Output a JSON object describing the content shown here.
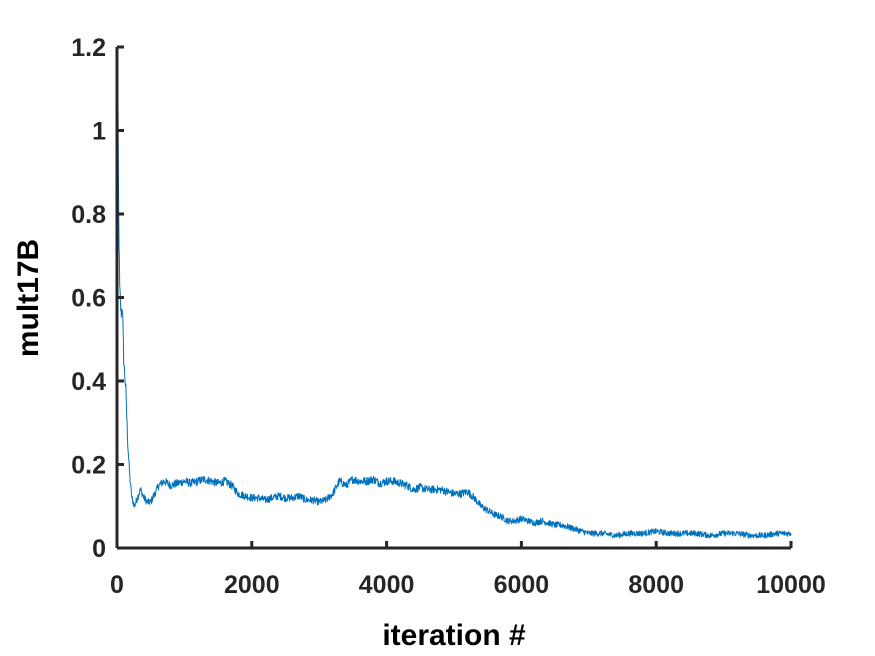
{
  "chart_data": {
    "type": "line",
    "title": "",
    "xlabel": "iteration #",
    "ylabel": "mult17B",
    "xlim": [
      0,
      10000
    ],
    "ylim": [
      0,
      1.2
    ],
    "xticks": [
      0,
      2000,
      4000,
      6000,
      8000,
      10000
    ],
    "xtick_labels": [
      "0",
      "2000",
      "4000",
      "6000",
      "8000",
      "10000"
    ],
    "yticks": [
      0,
      0.2,
      0.4,
      0.6,
      0.8,
      1.0,
      1.2
    ],
    "ytick_labels": [
      "0",
      "0.2",
      "0.4",
      "0.6",
      "0.8",
      "1",
      "1.2"
    ],
    "grid": false,
    "legend": "none",
    "series": [
      {
        "color": "#0072BD",
        "noise": 0.018,
        "x": [
          0,
          10,
          25,
          40,
          60,
          80,
          100,
          130,
          160,
          190,
          220,
          260,
          300,
          350,
          400,
          450,
          500,
          560,
          620,
          700,
          800,
          900,
          1000,
          1100,
          1200,
          1300,
          1400,
          1500,
          1600,
          1700,
          1800,
          1900,
          2000,
          2100,
          2200,
          2300,
          2400,
          2500,
          2600,
          2700,
          2800,
          2900,
          3000,
          3100,
          3200,
          3300,
          3400,
          3500,
          3600,
          3700,
          3800,
          3900,
          4000,
          4100,
          4200,
          4300,
          4400,
          4500,
          4600,
          4700,
          4800,
          4900,
          5000,
          5100,
          5200,
          5300,
          5400,
          5500,
          5600,
          5700,
          5800,
          5900,
          6000,
          6100,
          6200,
          6300,
          6400,
          6500,
          6600,
          6700,
          6800,
          6900,
          7000,
          7200,
          7400,
          7600,
          7800,
          8000,
          8200,
          8400,
          8600,
          8800,
          9000,
          9200,
          9400,
          9600,
          9800,
          10000
        ],
        "y": [
          0.9,
          1.15,
          0.8,
          0.62,
          0.56,
          0.58,
          0.45,
          0.38,
          0.25,
          0.17,
          0.12,
          0.1,
          0.12,
          0.14,
          0.12,
          0.11,
          0.11,
          0.13,
          0.15,
          0.16,
          0.15,
          0.155,
          0.16,
          0.155,
          0.16,
          0.165,
          0.16,
          0.155,
          0.16,
          0.15,
          0.13,
          0.125,
          0.12,
          0.12,
          0.115,
          0.12,
          0.125,
          0.12,
          0.12,
          0.125,
          0.115,
          0.115,
          0.11,
          0.115,
          0.13,
          0.16,
          0.15,
          0.165,
          0.16,
          0.16,
          0.165,
          0.155,
          0.16,
          0.16,
          0.155,
          0.15,
          0.14,
          0.145,
          0.14,
          0.14,
          0.14,
          0.135,
          0.13,
          0.13,
          0.135,
          0.12,
          0.1,
          0.09,
          0.08,
          0.075,
          0.065,
          0.065,
          0.07,
          0.065,
          0.06,
          0.065,
          0.06,
          0.055,
          0.055,
          0.05,
          0.045,
          0.04,
          0.035,
          0.035,
          0.03,
          0.035,
          0.035,
          0.04,
          0.035,
          0.035,
          0.035,
          0.03,
          0.035,
          0.035,
          0.03,
          0.03,
          0.035,
          0.035
        ]
      }
    ]
  }
}
